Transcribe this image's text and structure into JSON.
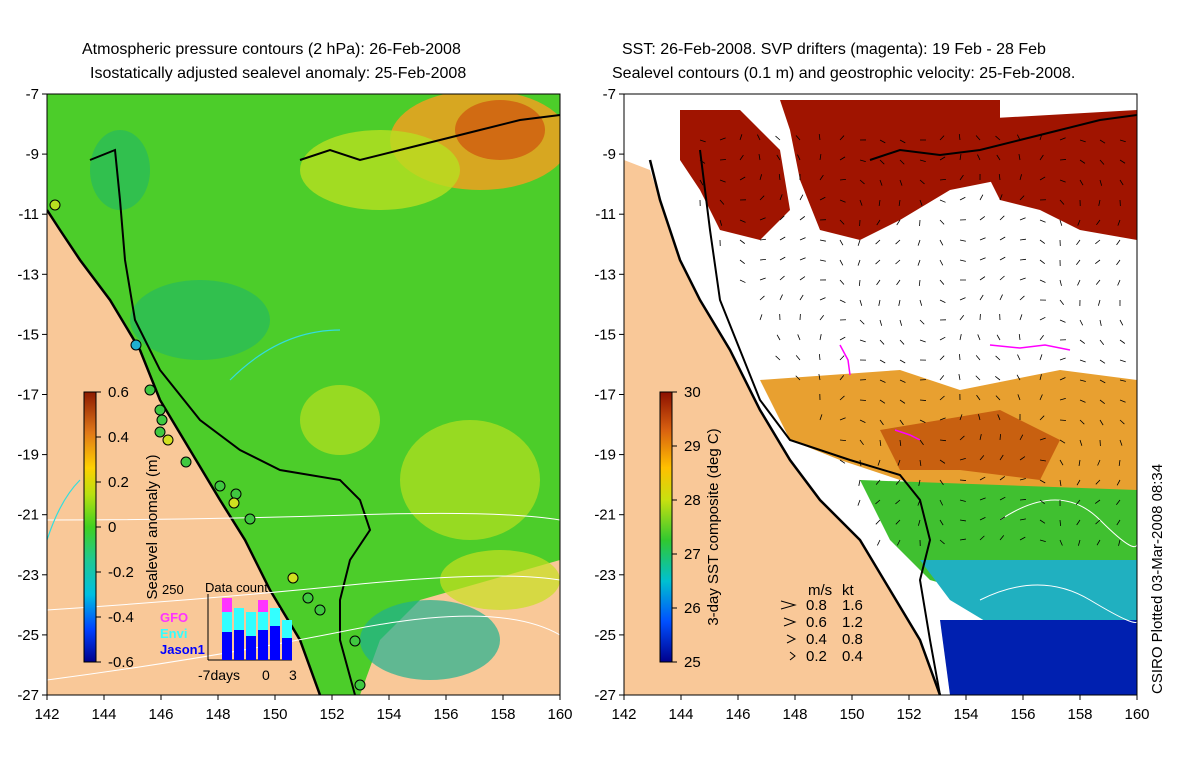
{
  "left_panel": {
    "title_line1": "Atmospheric pressure contours (2 hPa): 26-Feb-2008",
    "title_line2": "Isostatically adjusted sealevel anomaly: 25-Feb-2008",
    "colorbar_label": "Sealevel anomaly (m)",
    "colorbar_ticks": [
      "0.6",
      "0.4",
      "0.2",
      "0",
      "-0.2",
      "-0.4",
      "-0.6"
    ],
    "inset": {
      "title": "Data count",
      "ymax_label": "250",
      "legend": [
        {
          "name": "GFO",
          "color": "#ff33ff"
        },
        {
          "name": "Envi",
          "color": "#33ffff"
        },
        {
          "name": "Jason1",
          "color": "#0000ff"
        }
      ],
      "x_start_label": "-7days",
      "x_mid_label": "0",
      "x_end_label": "3"
    }
  },
  "right_panel": {
    "title_line1": "SST: 26-Feb-2008. SVP drifters (magenta): 19 Feb - 28 Feb",
    "title_line2": "Sealevel contours (0.1 m) and geostrophic velocity: 25-Feb-2008.",
    "colorbar_label": "3-day SST composite (deg C)",
    "colorbar_ticks": [
      "30",
      "29",
      "28",
      "27",
      "26",
      "25"
    ],
    "speed_legend": {
      "header_ms": "m/s",
      "header_kt": "kt",
      "rows": [
        {
          "ms": "0.8",
          "kt": "1.6"
        },
        {
          "ms": "0.6",
          "kt": "1.2"
        },
        {
          "ms": "0.4",
          "kt": "0.8"
        },
        {
          "ms": "0.2",
          "kt": "0.4"
        }
      ]
    }
  },
  "axes": {
    "y_ticks": [
      "-7",
      "-9",
      "-11",
      "-13",
      "-15",
      "-17",
      "-19",
      "-21",
      "-23",
      "-25",
      "-27"
    ],
    "x_ticks": [
      "142",
      "144",
      "146",
      "148",
      "150",
      "152",
      "154",
      "156",
      "158",
      "160"
    ],
    "lat_range": [
      -27,
      -7
    ],
    "lon_range": [
      142,
      160
    ]
  },
  "credit": "CSIRO Plotted 03-Mar-2008 08:34",
  "colors": {
    "land": "#f9c898",
    "ocean_anomaly": "#4ccd2a",
    "sst_cloud": "#ffffff",
    "coastline": "#000000"
  }
}
